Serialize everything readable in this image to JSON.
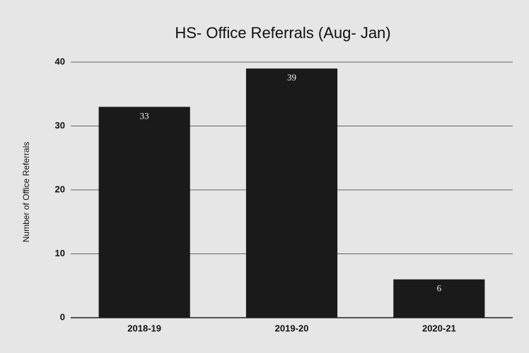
{
  "chart_data": {
    "type": "bar",
    "title": "HS- Office Referrals (Aug- Jan)",
    "y_label": "Number of Office Referrals",
    "categories": [
      "2018-19",
      "2019-20",
      "2020-21"
    ],
    "values": [
      33,
      39,
      6
    ],
    "color": "#1a1a1a",
    "ylim": [
      0,
      40
    ],
    "yticks": [
      0,
      10,
      20,
      30,
      40
    ],
    "grid": true
  }
}
